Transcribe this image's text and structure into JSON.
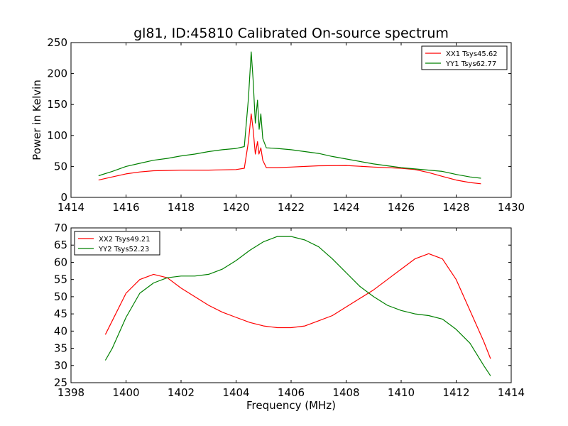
{
  "chart_data": [
    {
      "type": "line",
      "title": "gl81, ID:45810 Calibrated On-source spectrum",
      "xlabel": "",
      "ylabel": "Power in Kelvin",
      "xlim": [
        1414,
        1430
      ],
      "ylim": [
        0,
        250
      ],
      "xticks": [
        1414,
        1416,
        1418,
        1420,
        1422,
        1424,
        1426,
        1428,
        1430
      ],
      "yticks": [
        0,
        50,
        100,
        150,
        200,
        250
      ],
      "legend_position": "upper right",
      "series": [
        {
          "name": "XX1 Tsys45.62",
          "color": "#ff0000",
          "points": [
            [
              1415.0,
              28
            ],
            [
              1415.5,
              33
            ],
            [
              1416.0,
              38
            ],
            [
              1416.5,
              41
            ],
            [
              1417.0,
              43
            ],
            [
              1417.5,
              43.5
            ],
            [
              1418.0,
              44
            ],
            [
              1418.5,
              44
            ],
            [
              1419.0,
              44
            ],
            [
              1419.5,
              44.5
            ],
            [
              1420.0,
              45
            ],
            [
              1420.3,
              47
            ],
            [
              1420.45,
              90
            ],
            [
              1420.55,
              135
            ],
            [
              1420.62,
              110
            ],
            [
              1420.7,
              70
            ],
            [
              1420.78,
              90
            ],
            [
              1420.83,
              70
            ],
            [
              1420.9,
              80
            ],
            [
              1420.97,
              60
            ],
            [
              1421.1,
              48
            ],
            [
              1421.5,
              48
            ],
            [
              1422.0,
              49
            ],
            [
              1423.0,
              51
            ],
            [
              1424.0,
              51.5
            ],
            [
              1425.0,
              49
            ],
            [
              1426.0,
              47
            ],
            [
              1426.5,
              45
            ],
            [
              1427.0,
              40
            ],
            [
              1427.5,
              34
            ],
            [
              1428.0,
              28
            ],
            [
              1428.5,
              24
            ],
            [
              1428.9,
              22
            ]
          ]
        },
        {
          "name": "YY1 Tsys62.77",
          "color": "#008000",
          "points": [
            [
              1415.0,
              35
            ],
            [
              1415.5,
              42
            ],
            [
              1416.0,
              50
            ],
            [
              1416.5,
              55
            ],
            [
              1417.0,
              60
            ],
            [
              1417.5,
              63
            ],
            [
              1418.0,
              67
            ],
            [
              1418.5,
              70
            ],
            [
              1419.0,
              74
            ],
            [
              1419.5,
              77
            ],
            [
              1420.0,
              79
            ],
            [
              1420.3,
              82
            ],
            [
              1420.45,
              160
            ],
            [
              1420.55,
              235
            ],
            [
              1420.62,
              190
            ],
            [
              1420.7,
              120
            ],
            [
              1420.78,
              157
            ],
            [
              1420.84,
              110
            ],
            [
              1420.9,
              135
            ],
            [
              1420.97,
              95
            ],
            [
              1421.1,
              80
            ],
            [
              1421.5,
              79
            ],
            [
              1422.0,
              77
            ],
            [
              1422.5,
              74
            ],
            [
              1423.0,
              71
            ],
            [
              1423.5,
              66
            ],
            [
              1424.0,
              62
            ],
            [
              1425.0,
              54
            ],
            [
              1426.0,
              48
            ],
            [
              1427.0,
              44
            ],
            [
              1427.5,
              42
            ],
            [
              1428.0,
              37
            ],
            [
              1428.5,
              33
            ],
            [
              1428.9,
              31
            ]
          ]
        }
      ]
    },
    {
      "type": "line",
      "title": "",
      "xlabel": "Frequency (MHz)",
      "ylabel": "",
      "xlim": [
        1398,
        1414
      ],
      "ylim": [
        25,
        70
      ],
      "xticks": [
        1398,
        1400,
        1402,
        1404,
        1406,
        1408,
        1410,
        1412,
        1414
      ],
      "yticks": [
        25,
        30,
        35,
        40,
        45,
        50,
        55,
        60,
        65,
        70
      ],
      "legend_position": "upper left",
      "series": [
        {
          "name": "XX2 Tsys49.21",
          "color": "#ff0000",
          "points": [
            [
              1399.25,
              39
            ],
            [
              1399.5,
              43
            ],
            [
              1400.0,
              51
            ],
            [
              1400.5,
              55
            ],
            [
              1401.0,
              56.5
            ],
            [
              1401.5,
              55.5
            ],
            [
              1402.0,
              52.5
            ],
            [
              1402.5,
              50
            ],
            [
              1403.0,
              47.5
            ],
            [
              1403.5,
              45.5
            ],
            [
              1404.0,
              44
            ],
            [
              1404.5,
              42.5
            ],
            [
              1405.0,
              41.5
            ],
            [
              1405.5,
              41
            ],
            [
              1406.0,
              41
            ],
            [
              1406.5,
              41.5
            ],
            [
              1407.0,
              43
            ],
            [
              1407.5,
              44.5
            ],
            [
              1408.0,
              47
            ],
            [
              1408.5,
              49.5
            ],
            [
              1409.0,
              52
            ],
            [
              1409.5,
              55
            ],
            [
              1410.0,
              58
            ],
            [
              1410.5,
              61
            ],
            [
              1411.0,
              62.5
            ],
            [
              1411.5,
              61
            ],
            [
              1412.0,
              55
            ],
            [
              1412.5,
              46
            ],
            [
              1413.0,
              37
            ],
            [
              1413.25,
              32
            ]
          ]
        },
        {
          "name": "YY2 Tsys52.23",
          "color": "#008000",
          "points": [
            [
              1399.25,
              31.5
            ],
            [
              1399.5,
              35
            ],
            [
              1400.0,
              44
            ],
            [
              1400.5,
              51
            ],
            [
              1401.0,
              54
            ],
            [
              1401.5,
              55.5
            ],
            [
              1402.0,
              56
            ],
            [
              1402.5,
              56
            ],
            [
              1403.0,
              56.5
            ],
            [
              1403.5,
              58
            ],
            [
              1404.0,
              60.5
            ],
            [
              1404.5,
              63.5
            ],
            [
              1405.0,
              66
            ],
            [
              1405.5,
              67.5
            ],
            [
              1406.0,
              67.5
            ],
            [
              1406.5,
              66.5
            ],
            [
              1407.0,
              64.5
            ],
            [
              1407.5,
              61
            ],
            [
              1408.0,
              57
            ],
            [
              1408.5,
              53
            ],
            [
              1409.0,
              50
            ],
            [
              1409.5,
              47.5
            ],
            [
              1410.0,
              46
            ],
            [
              1410.5,
              45
            ],
            [
              1411.0,
              44.5
            ],
            [
              1411.5,
              43.5
            ],
            [
              1412.0,
              40.5
            ],
            [
              1412.5,
              36.5
            ],
            [
              1413.0,
              30
            ],
            [
              1413.25,
              27
            ]
          ]
        }
      ]
    }
  ]
}
